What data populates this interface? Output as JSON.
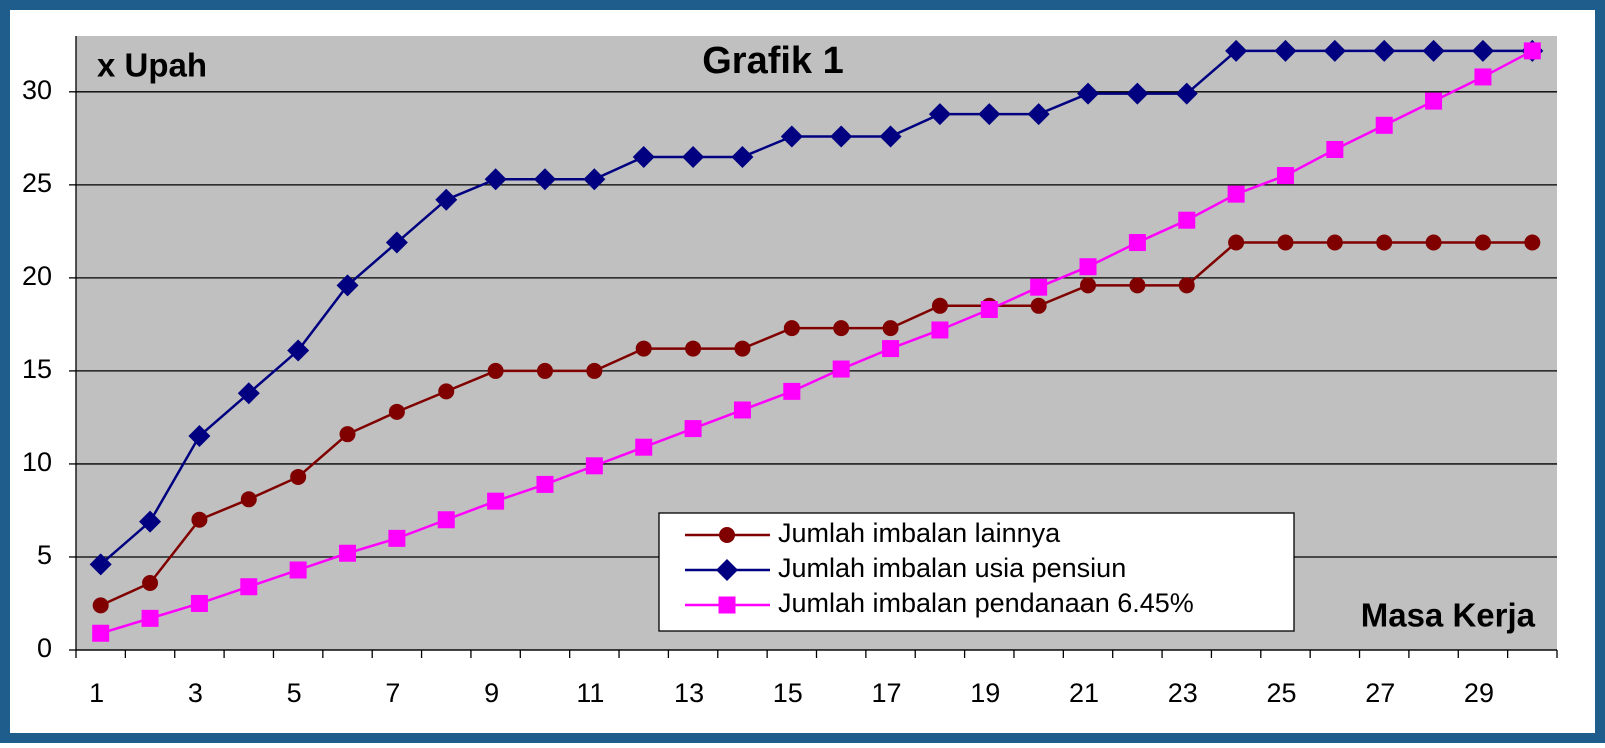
{
  "chart_data": {
    "type": "line",
    "title": "Grafik 1",
    "y_label": "x Upah",
    "x_label": "Masa Kerja",
    "categories": [
      1,
      null,
      3,
      null,
      5,
      null,
      7,
      null,
      9,
      null,
      11,
      null,
      13,
      null,
      15,
      null,
      17,
      null,
      19,
      null,
      21,
      null,
      23,
      null,
      25,
      null,
      27,
      null,
      29,
      null
    ],
    "series": [
      {
        "name": "Jumlah imbalan lainnya",
        "color": "#800000",
        "marker": "circle",
        "values": [
          2.4,
          3.6,
          7.0,
          8.1,
          9.3,
          11.6,
          12.8,
          13.9,
          15.0,
          15.0,
          15.0,
          16.2,
          16.2,
          16.2,
          17.3,
          17.3,
          17.3,
          18.5,
          18.5,
          18.5,
          19.6,
          19.6,
          19.6,
          21.9,
          21.9,
          21.9,
          21.9,
          21.9,
          21.9,
          21.9
        ]
      },
      {
        "name": "Jumlah imbalan usia pensiun",
        "color": "#000080",
        "marker": "diamond",
        "values": [
          4.6,
          6.9,
          11.5,
          13.8,
          16.1,
          19.6,
          21.9,
          24.2,
          25.3,
          25.3,
          25.3,
          26.5,
          26.5,
          26.5,
          27.6,
          27.6,
          27.6,
          28.8,
          28.8,
          28.8,
          29.9,
          29.9,
          29.9,
          32.2,
          32.2,
          32.2,
          32.2,
          32.2,
          32.2,
          32.2
        ]
      },
      {
        "name": "Jumlah imbalan pendanaan 6.45%",
        "color": "#ff00ff",
        "marker": "square",
        "values": [
          0.9,
          1.7,
          2.5,
          3.4,
          4.3,
          5.2,
          6.0,
          7.0,
          8.0,
          8.9,
          9.9,
          10.9,
          11.9,
          12.9,
          13.9,
          15.1,
          16.2,
          17.2,
          18.3,
          19.5,
          20.6,
          21.9,
          23.1,
          24.5,
          25.5,
          26.9,
          28.2,
          29.5,
          30.8,
          32.2
        ]
      }
    ],
    "ylim": [
      0,
      33
    ],
    "yticks": [
      0,
      5,
      10,
      15,
      20,
      25,
      30
    ],
    "grid": true
  }
}
